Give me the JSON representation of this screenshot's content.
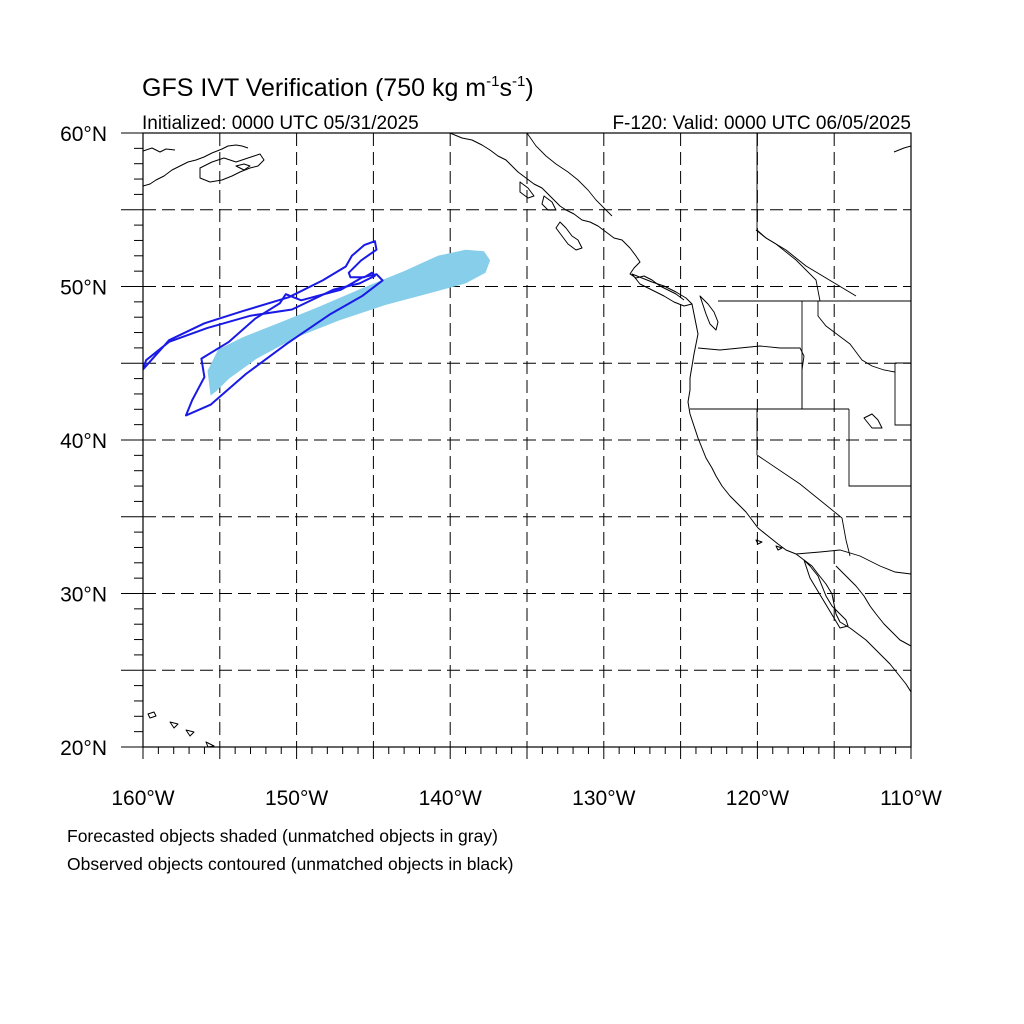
{
  "header": {
    "title_main": "GFS IVT Verification (750 kg m",
    "title_exp1": "-1",
    "title_mid": "s",
    "title_exp2": "-1",
    "title_end": ")",
    "initialized": "Initialized: 0000 UTC 05/31/2025",
    "valid": "F-120: Valid: 0000 UTC 06/05/2025"
  },
  "map": {
    "lon_range": [
      -160,
      -110
    ],
    "lat_range": [
      20,
      60
    ],
    "projection": "cylindrical equidistant",
    "grid": "dashed, every 5 degrees",
    "lon_labels": [
      {
        "lon": -160,
        "text": "160°W"
      },
      {
        "lon": -150,
        "text": "150°W"
      },
      {
        "lon": -140,
        "text": "140°W"
      },
      {
        "lon": -130,
        "text": "130°W"
      },
      {
        "lon": -120,
        "text": "120°W"
      },
      {
        "lon": -110,
        "text": "110°W"
      }
    ],
    "lat_labels": [
      {
        "lat": 60,
        "text": "60°N"
      },
      {
        "lat": 50,
        "text": "50°N"
      },
      {
        "lat": 40,
        "text": "40°N"
      },
      {
        "lat": 30,
        "text": "30°N"
      },
      {
        "lat": 20,
        "text": "20°N"
      }
    ],
    "colors": {
      "forecast_shade": "#87ceeb",
      "observed_contour": "#1a1ae6",
      "coastline": "#000000"
    },
    "forecast_object": [
      [
        -155.6,
        42.9
      ],
      [
        -155.8,
        44.5
      ],
      [
        -155.1,
        45.9
      ],
      [
        -153.5,
        46.7
      ],
      [
        -151.2,
        47.6
      ],
      [
        -148.5,
        48.7
      ],
      [
        -145.7,
        49.9
      ],
      [
        -143.0,
        51.0
      ],
      [
        -140.8,
        52.0
      ],
      [
        -139.0,
        52.4
      ],
      [
        -137.8,
        52.3
      ],
      [
        -137.4,
        51.7
      ],
      [
        -137.7,
        50.9
      ],
      [
        -139.0,
        50.2
      ],
      [
        -141.2,
        49.6
      ],
      [
        -144.2,
        48.8
      ],
      [
        -147.2,
        47.8
      ],
      [
        -150.0,
        46.7
      ],
      [
        -152.6,
        45.3
      ],
      [
        -154.4,
        44.0
      ],
      [
        -155.2,
        43.2
      ]
    ],
    "observed_object_outer": [
      [
        -160.0,
        44.6
      ],
      [
        -158.3,
        46.5
      ],
      [
        -156.0,
        47.6
      ],
      [
        -153.5,
        48.4
      ],
      [
        -150.5,
        49.3
      ],
      [
        -148.3,
        50.4
      ],
      [
        -146.8,
        51.3
      ],
      [
        -146.4,
        52.0
      ],
      [
        -145.6,
        52.7
      ],
      [
        -144.9,
        52.95
      ],
      [
        -144.8,
        52.4
      ],
      [
        -145.8,
        51.7
      ],
      [
        -146.6,
        50.9
      ],
      [
        -146.5,
        50.6
      ],
      [
        -145.6,
        50.6
      ],
      [
        -145.1,
        50.9
      ],
      [
        -144.9,
        50.7
      ],
      [
        -145.9,
        50.2
      ],
      [
        -147.6,
        49.8
      ],
      [
        -150.3,
        48.5
      ],
      [
        -153.0,
        48.1
      ],
      [
        -155.8,
        47.3
      ],
      [
        -158.3,
        46.4
      ],
      [
        -159.8,
        45.2
      ]
    ],
    "observed_object_inner": [
      [
        -157.2,
        41.6
      ],
      [
        -155.6,
        42.3
      ],
      [
        -153.3,
        44.3
      ],
      [
        -150.6,
        46.3
      ],
      [
        -147.8,
        48.2
      ],
      [
        -145.7,
        49.4
      ],
      [
        -144.4,
        50.4
      ],
      [
        -144.8,
        50.8
      ],
      [
        -145.7,
        50.6
      ],
      [
        -147.1,
        49.8
      ],
      [
        -149.7,
        49.1
      ],
      [
        -150.7,
        49.5
      ],
      [
        -151.1,
        48.9
      ],
      [
        -152.7,
        47.9
      ],
      [
        -154.4,
        46.4
      ],
      [
        -156.2,
        45.3
      ],
      [
        -156.0,
        44.1
      ],
      [
        -156.8,
        42.6
      ]
    ]
  },
  "footer": {
    "line1": "Forecasted objects shaded (unmatched objects in gray)",
    "line2": "Observed objects contoured (unmatched objects in black)"
  }
}
